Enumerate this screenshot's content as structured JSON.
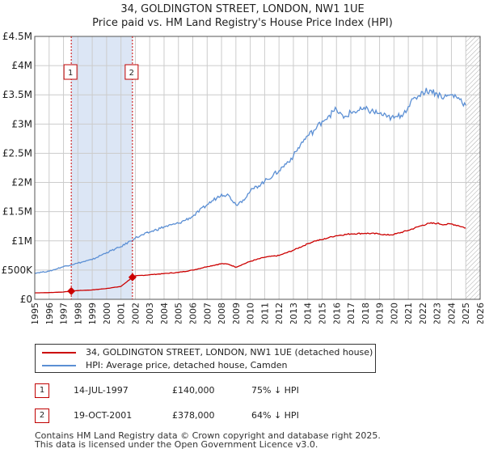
{
  "chart_data": {
    "type": "line",
    "title": "34, GOLDINGTON STREET, LONDON, NW1 1UE",
    "subtitle": "Price paid vs. HM Land Registry's House Price Index (HPI)",
    "xlabel": "",
    "ylabel": "",
    "xlim": [
      1995,
      2026
    ],
    "ylim": [
      0,
      4500000
    ],
    "grid": true,
    "x_ticks": [
      1995,
      1996,
      1997,
      1998,
      1999,
      2000,
      2001,
      2002,
      2003,
      2004,
      2005,
      2006,
      2007,
      2008,
      2009,
      2010,
      2011,
      2012,
      2013,
      2014,
      2015,
      2016,
      2017,
      2018,
      2019,
      2020,
      2021,
      2022,
      2023,
      2024,
      2025,
      2026
    ],
    "x_tick_labels": [
      "1995",
      "1996",
      "1997",
      "1998",
      "1999",
      "2000",
      "2001",
      "2002",
      "2003",
      "2004",
      "2005",
      "2006",
      "2007",
      "2008",
      "2009",
      "2010",
      "2011",
      "2012",
      "2013",
      "2014",
      "2015",
      "2016",
      "2017",
      "2018",
      "2019",
      "2020",
      "2021",
      "2022",
      "2023",
      "2024",
      "2025",
      "2026"
    ],
    "y_ticks": [
      0,
      500000,
      1000000,
      1500000,
      2000000,
      2500000,
      3000000,
      3500000,
      4000000,
      4500000
    ],
    "y_tick_labels": [
      "£0",
      "£500K",
      "£1M",
      "£1.5M",
      "£2M",
      "£2.5M",
      "£3M",
      "£3.5M",
      "£4M",
      "£4.5M"
    ],
    "shaded_span": {
      "from": 1997.54,
      "to": 2001.8,
      "color": "#dce6f5"
    },
    "hatched_region_from": 2025.0,
    "series": [
      {
        "name": "34, GOLDINGTON STREET, LONDON, NW1 1UE (detached house)",
        "color": "#cc0000",
        "x": [
          1995,
          1996,
          1997,
          1997.54,
          1998,
          1999,
          2000,
          2001,
          2001.8,
          2002,
          2003,
          2004,
          2005,
          2006,
          2007,
          2008,
          2008.5,
          2009,
          2009.5,
          2010,
          2011,
          2012,
          2013,
          2014,
          2014.5,
          2015,
          2015.5,
          2016,
          2017,
          2018,
          2019,
          2019.5,
          2020,
          2021,
          2022,
          2022.5,
          2023,
          2023.5,
          2024,
          2024.5,
          2025
        ],
        "y": [
          110000,
          115000,
          125000,
          140000,
          150000,
          160000,
          185000,
          220000,
          378000,
          400000,
          420000,
          440000,
          460000,
          500000,
          560000,
          610000,
          600000,
          550000,
          600000,
          650000,
          720000,
          750000,
          840000,
          950000,
          1000000,
          1020000,
          1060000,
          1090000,
          1120000,
          1130000,
          1120000,
          1100000,
          1110000,
          1180000,
          1270000,
          1300000,
          1300000,
          1280000,
          1290000,
          1260000,
          1220000
        ]
      },
      {
        "name": "HPI: Average price, detached house, Camden",
        "color": "#5b8fd4",
        "x": [
          1995,
          1996,
          1997,
          1998,
          1999,
          2000,
          2001,
          2002,
          2003,
          2004,
          2005,
          2006,
          2007,
          2008,
          2008.5,
          2009,
          2009.5,
          2010,
          2011,
          2012,
          2013,
          2013.5,
          2014,
          2014.5,
          2015,
          2015.5,
          2016,
          2016.5,
          2017,
          2018,
          2019,
          2019.5,
          2020,
          2020.5,
          2021,
          2021.5,
          2022,
          2022.5,
          2023,
          2023.5,
          2024,
          2024.5,
          2025
        ],
        "y": [
          450000,
          480000,
          560000,
          620000,
          680000,
          800000,
          900000,
          1050000,
          1150000,
          1240000,
          1300000,
          1420000,
          1620000,
          1800000,
          1780000,
          1620000,
          1700000,
          1850000,
          2020000,
          2200000,
          2450000,
          2650000,
          2800000,
          2900000,
          3050000,
          3150000,
          3250000,
          3100000,
          3200000,
          3250000,
          3180000,
          3120000,
          3100000,
          3150000,
          3300000,
          3450000,
          3550000,
          3580000,
          3520000,
          3460000,
          3500000,
          3450000,
          3320000
        ]
      }
    ],
    "sales": [
      {
        "label": "1",
        "date": "14-JUL-1997",
        "x": 1997.54,
        "price": 140000,
        "price_text": "£140,000",
        "hpi": "75% ↓ HPI"
      },
      {
        "label": "2",
        "date": "19-OCT-2001",
        "x": 2001.8,
        "price": 378000,
        "price_text": "£378,000",
        "hpi": "64% ↓ HPI"
      }
    ]
  },
  "legend": {
    "property_label": "34, GOLDINGTON STREET, LONDON, NW1 1UE (detached house)",
    "hpi_label": "HPI: Average price, detached house, Camden"
  },
  "footer": {
    "line1": "Contains HM Land Registry data © Crown copyright and database right 2025.",
    "line2": "This data is licensed under the Open Government Licence v3.0."
  },
  "colors": {
    "property": "#cc0000",
    "hpi": "#5b8fd4",
    "grid": "#cccccc",
    "shade": "#dce6f5"
  }
}
